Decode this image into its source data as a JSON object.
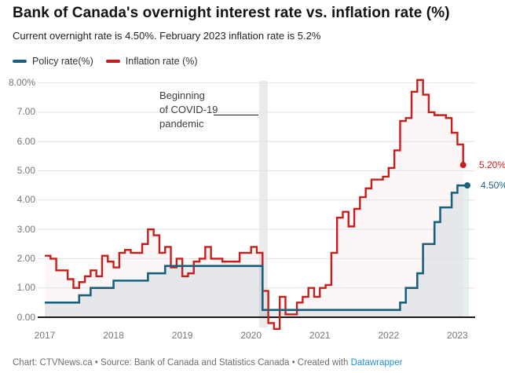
{
  "header": {
    "title": "Bank of Canada's overnight interest rate vs. inflation rate (%)",
    "subtitle": "Current overnight rate is 4.50%. February 2023 inflation rate is 5.2%"
  },
  "legend": [
    {
      "label": "Policy rate(%)",
      "color": "#1a617d"
    },
    {
      "label": "Inflation rate (%)",
      "color": "#c71e1d"
    }
  ],
  "annotation": {
    "lines": [
      "Beginning",
      "of COVID-19",
      "pandemic"
    ]
  },
  "footer": {
    "prefix": "Chart: CTVNews.ca • Source: Bank of Canada and Statistics Canada • Created with ",
    "link": "Datawrapper",
    "link_color": "#1e8fd0"
  },
  "chart_data": {
    "type": "line",
    "step": true,
    "title": "Bank of Canada's overnight interest rate vs. inflation rate (%)",
    "grid": true,
    "x_start": "2017-01",
    "x_tick_labels": [
      "2017",
      "2018",
      "2019",
      "2020",
      "2021",
      "2022",
      "2023"
    ],
    "y_tick_labels": [
      "8.00%",
      "7.00",
      "6.00",
      "5.00",
      "4.00",
      "3.00",
      "2.00",
      "1.00",
      "0.00"
    ],
    "y_tick_values": [
      8,
      7,
      6,
      5,
      4,
      3,
      2,
      1,
      0
    ],
    "ylim": [
      -0.5,
      8.2
    ],
    "highlight_band": {
      "label": "Beginning of COVID-19 pandemic",
      "x_start": "2020-02",
      "x_end": "2020-03"
    },
    "series": [
      {
        "name": "Policy rate(%)",
        "color": "#1a617d",
        "end_label": "4.50%",
        "start": "2017-01",
        "end": "2023-03",
        "values": [
          0.5,
          0.5,
          0.5,
          0.5,
          0.5,
          0.5,
          0.75,
          0.75,
          1.0,
          1.0,
          1.0,
          1.0,
          1.25,
          1.25,
          1.25,
          1.25,
          1.25,
          1.25,
          1.5,
          1.5,
          1.5,
          1.75,
          1.75,
          1.75,
          1.75,
          1.75,
          1.75,
          1.75,
          1.75,
          1.75,
          1.75,
          1.75,
          1.75,
          1.75,
          1.75,
          1.75,
          1.75,
          1.75,
          0.25,
          0.25,
          0.25,
          0.25,
          0.25,
          0.25,
          0.25,
          0.25,
          0.25,
          0.25,
          0.25,
          0.25,
          0.25,
          0.25,
          0.25,
          0.25,
          0.25,
          0.25,
          0.25,
          0.25,
          0.25,
          0.25,
          0.25,
          0.25,
          0.5,
          1.0,
          1.0,
          1.5,
          2.5,
          2.5,
          3.25,
          3.75,
          3.75,
          4.25,
          4.5,
          4.5,
          4.5
        ]
      },
      {
        "name": "Inflation rate (%)",
        "color": "#c71e1d",
        "end_label": "5.20%",
        "start": "2017-01",
        "end": "2023-02",
        "values": [
          2.1,
          2.0,
          1.6,
          1.6,
          1.3,
          1.0,
          1.2,
          1.4,
          1.6,
          1.4,
          2.1,
          1.9,
          1.7,
          2.2,
          2.3,
          2.2,
          2.2,
          2.5,
          3.0,
          2.8,
          2.2,
          2.4,
          1.7,
          2.0,
          1.4,
          1.5,
          1.9,
          2.0,
          2.4,
          2.0,
          2.0,
          1.9,
          1.9,
          1.9,
          2.2,
          2.2,
          2.4,
          2.2,
          0.9,
          -0.2,
          -0.4,
          0.7,
          0.1,
          0.1,
          0.5,
          0.7,
          1.0,
          0.7,
          1.0,
          1.1,
          2.2,
          3.4,
          3.6,
          3.1,
          3.7,
          4.1,
          4.4,
          4.7,
          4.7,
          4.8,
          5.1,
          5.7,
          6.7,
          6.8,
          7.7,
          8.1,
          7.6,
          7.0,
          6.9,
          6.9,
          6.8,
          6.3,
          5.9,
          5.2
        ]
      }
    ]
  }
}
